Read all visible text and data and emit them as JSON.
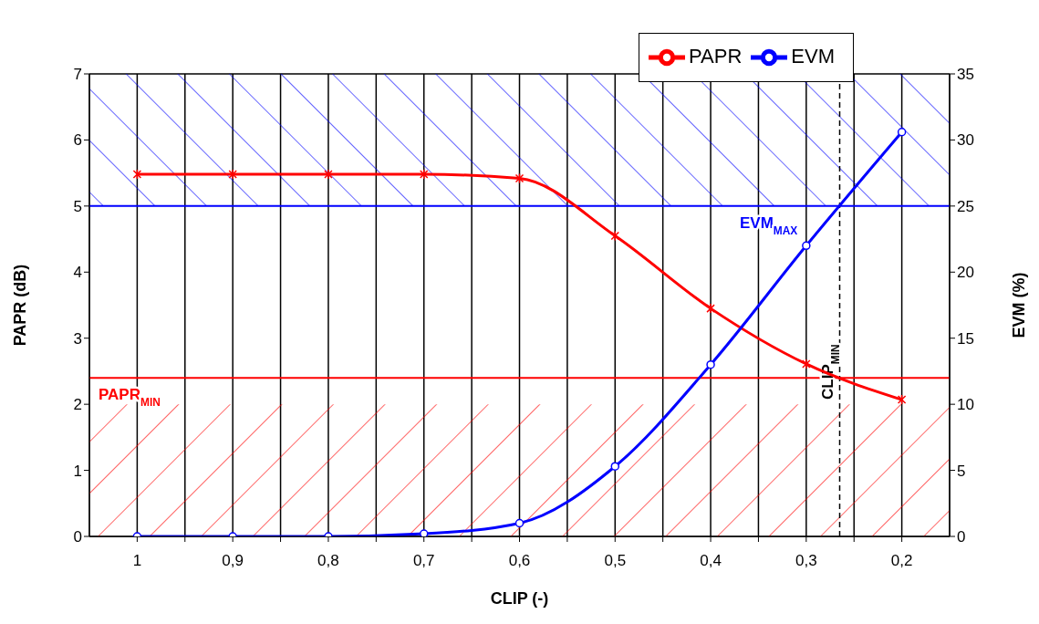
{
  "chart_data": {
    "type": "line",
    "xlabel": "CLIP (-)",
    "ylabel": "PAPR (dB)",
    "y2label": "EVM (%)",
    "x": [
      1,
      0.9,
      0.8,
      0.7,
      0.6,
      0.5,
      0.4,
      0.3,
      0.2
    ],
    "series": [
      {
        "name": "PAPR",
        "color": "#ff0000",
        "marker": "cross",
        "values": [
          5.48,
          5.48,
          5.48,
          5.48,
          5.42,
          4.55,
          3.45,
          2.61,
          2.07
        ]
      },
      {
        "name": "EVM",
        "color": "#0000ff",
        "marker": "circle",
        "axis": "y2",
        "values": [
          0,
          0,
          0,
          0.2,
          1.0,
          5.3,
          13.0,
          22.0,
          30.6
        ]
      }
    ],
    "xlim": [
      1.05,
      0.15
    ],
    "xticks": [
      {
        "value": 1,
        "label": "1"
      },
      {
        "value": 0.95,
        "label": null
      },
      {
        "value": 0.9,
        "label": "0,9"
      },
      {
        "value": 0.85,
        "label": null
      },
      {
        "value": 0.8,
        "label": "0,8"
      },
      {
        "value": 0.75,
        "label": null
      },
      {
        "value": 0.7,
        "label": "0,7"
      },
      {
        "value": 0.65,
        "label": null
      },
      {
        "value": 0.6,
        "label": "0,6"
      },
      {
        "value": 0.55,
        "label": null
      },
      {
        "value": 0.5,
        "label": "0,5"
      },
      {
        "value": 0.45,
        "label": null
      },
      {
        "value": 0.4,
        "label": "0,4"
      },
      {
        "value": 0.35,
        "label": null
      },
      {
        "value": 0.3,
        "label": "0,3"
      },
      {
        "value": 0.25,
        "label": null
      },
      {
        "value": 0.2,
        "label": "0,2"
      }
    ],
    "ylim": [
      0,
      7
    ],
    "yticks": [
      0,
      1,
      2,
      3,
      4,
      5,
      6,
      7
    ],
    "y2lim": [
      0,
      35
    ],
    "y2ticks": [
      0,
      5,
      10,
      15,
      20,
      25,
      30,
      35
    ],
    "ref_lines": [
      {
        "axis": "y",
        "value": 2.4,
        "label": "PAPR$_{MIN}$",
        "color": "#ff0000",
        "line_style": "solid"
      },
      {
        "axis": "y2",
        "value": 25,
        "label": "EVM$_{MAX}$",
        "color": "#0000ff",
        "line_style": "solid"
      },
      {
        "axis": "x",
        "value": 0.265,
        "label": "CLIP$_{MIN}$",
        "color": "#000000",
        "line_style": "dashed"
      }
    ],
    "bands": [
      {
        "axis": "y2",
        "from": 25,
        "to": 35,
        "color": "#0000ff"
      },
      {
        "axis": "y",
        "from": 0,
        "to": 2,
        "color": "#ff0000"
      }
    ],
    "grid": true,
    "legend": "top right",
    "line_style": "solid"
  }
}
